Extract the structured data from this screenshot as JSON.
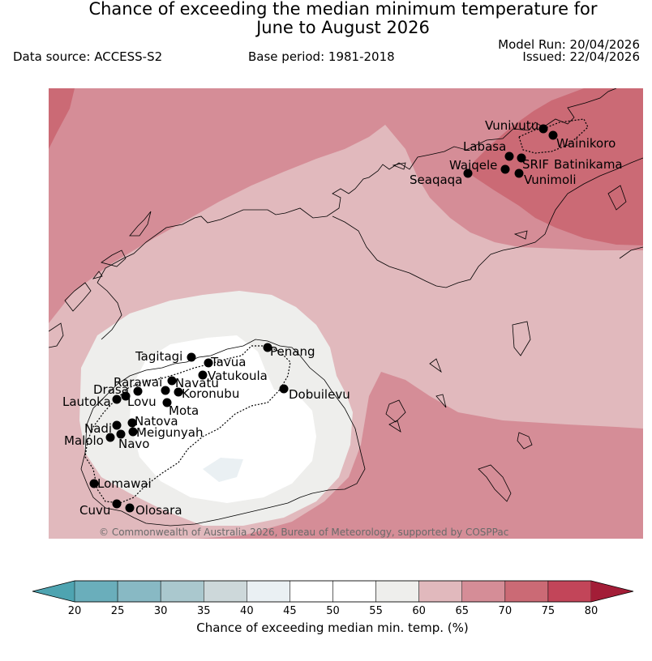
{
  "header": {
    "title_line1": "Chance of exceeding the median minimum temperature for",
    "title_line2": "June to August 2026",
    "data_source": "Data source: ACCESS-S2",
    "base_period": "Base period: 1981-2018",
    "model_run": "Model Run: 20/04/2026",
    "issued": "Issued: 22/04/2026"
  },
  "map": {
    "credit": "© Commonwealth of Australia 2026, Bureau of Meteorology, supported by COSPPac",
    "stations": [
      {
        "name": "Vunivutu"
      },
      {
        "name": "Wainikoro"
      },
      {
        "name": "Labasa"
      },
      {
        "name": "SRIF"
      },
      {
        "name": "Batinikama"
      },
      {
        "name": "Waiqele"
      },
      {
        "name": "Seaqaqa"
      },
      {
        "name": "Vunimoli"
      },
      {
        "name": "Penang"
      },
      {
        "name": "Tagitagi"
      },
      {
        "name": "Tavua"
      },
      {
        "name": "Vatukoula"
      },
      {
        "name": "Rarawai"
      },
      {
        "name": "Navatu"
      },
      {
        "name": "Drasa"
      },
      {
        "name": "Koronubu"
      },
      {
        "name": "Lautoka"
      },
      {
        "name": "Lovu"
      },
      {
        "name": "Mota"
      },
      {
        "name": "Dobuilevu"
      },
      {
        "name": "Natova"
      },
      {
        "name": "Nadi"
      },
      {
        "name": "Meigunyah"
      },
      {
        "name": "Malolo"
      },
      {
        "name": "Navo"
      },
      {
        "name": "Lomawai"
      },
      {
        "name": "Cuvu"
      },
      {
        "name": "Olosara"
      }
    ]
  },
  "colorbar": {
    "label": "Chance of exceeding median min. temp. (%)",
    "ticks": [
      "20",
      "25",
      "30",
      "35",
      "40",
      "45",
      "50",
      "55",
      "60",
      "65",
      "70",
      "75",
      "80"
    ],
    "colors": [
      "#6aaebb",
      "#88b9c4",
      "#aac8ce",
      "#cdd8da",
      "#eaf0f3",
      "#ffffff",
      "#ffffff",
      "#eeeeec",
      "#e1b9bd",
      "#d58d97",
      "#cb6a75",
      "#c24559"
    ],
    "under_color": "#4ea4b1",
    "over_color": "#a31d37"
  }
}
